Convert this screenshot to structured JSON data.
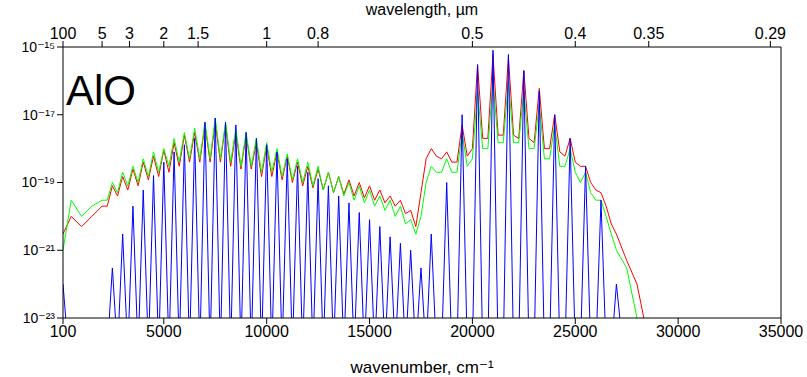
{
  "chart_data": {
    "type": "line",
    "title": "AlO",
    "xlabel": "wavenumber, cm⁻¹",
    "x2label": "wavelength, µm",
    "log": "y",
    "grid": false,
    "xlim": [
      100,
      35000
    ],
    "xticks": [
      100,
      5000,
      10000,
      15000,
      20000,
      25000,
      30000,
      35000
    ],
    "x2lim": [
      100,
      35000
    ],
    "x2ticks": [
      {
        "value": 100,
        "label": "100"
      },
      {
        "value": 2000,
        "label": "5"
      },
      {
        "value": 3333,
        "label": "3"
      },
      {
        "value": 5000,
        "label": "2"
      },
      {
        "value": 6667,
        "label": "1.5"
      },
      {
        "value": 10000,
        "label": "1"
      },
      {
        "value": 12500,
        "label": "0.8"
      },
      {
        "value": 20000,
        "label": "0.5"
      },
      {
        "value": 25000,
        "label": "0.4"
      },
      {
        "value": 28571,
        "label": "0.35"
      },
      {
        "value": 34483,
        "label": "0.29"
      }
    ],
    "ylim": [
      1e-23,
      1e-15
    ],
    "yticks": [
      {
        "value": 1e-23,
        "label": "10⁻²³"
      },
      {
        "value": 1e-21,
        "label": "10⁻²¹"
      },
      {
        "value": 1e-19,
        "label": "10⁻¹⁹"
      },
      {
        "value": 1e-17,
        "label": "10⁻¹⁷"
      },
      {
        "value": 1e-15,
        "label": "10⁻¹⁵"
      }
    ],
    "x": [
      100,
      500,
      1000,
      1500,
      2000,
      2250,
      2500,
      2750,
      3000,
      3250,
      3500,
      3750,
      4000,
      4250,
      4500,
      4750,
      5000,
      5250,
      5500,
      5750,
      6000,
      6250,
      6500,
      6750,
      7000,
      7250,
      7500,
      7750,
      8000,
      8250,
      8500,
      8750,
      9000,
      9250,
      9500,
      9750,
      10000,
      10250,
      10500,
      10750,
      11000,
      11250,
      11500,
      11750,
      12000,
      12250,
      12500,
      12750,
      13000,
      13250,
      13500,
      13750,
      14000,
      14250,
      14500,
      14750,
      15000,
      15250,
      15500,
      15750,
      16000,
      16250,
      16500,
      16750,
      17000,
      17250,
      17500,
      17750,
      18000,
      18250,
      18500,
      18750,
      19000,
      19250,
      19500,
      19750,
      20000,
      20250,
      20500,
      20750,
      21000,
      21250,
      21500,
      21750,
      22000,
      22250,
      22500,
      22750,
      23000,
      23250,
      23500,
      23750,
      24000,
      24250,
      24500,
      24750,
      25000,
      25250,
      25500,
      25750,
      26000,
      26250,
      26500,
      26750,
      27000,
      27500,
      28000,
      29000,
      30000,
      35000
    ],
    "series": [
      {
        "color": "#ff0000",
        "marker": "none",
        "line_style": "solid",
        "values": [
          3e-21,
          1e-20,
          5e-21,
          1e-20,
          2e-20,
          2e-20,
          8e-20,
          4e-20,
          1.5e-19,
          6e-20,
          2.5e-19,
          8e-20,
          4e-19,
          1.2e-19,
          6e-19,
          1.5e-19,
          9e-19,
          2e-19,
          1.5e-18,
          3e-19,
          2.5e-18,
          4e-19,
          3e-18,
          4e-19,
          5e-18,
          4e-19,
          6e-18,
          4e-19,
          5e-18,
          3e-19,
          3e-18,
          2.5e-19,
          2.5e-18,
          2.5e-19,
          1.5e-18,
          1.5e-19,
          1.2e-18,
          1.5e-19,
          8e-19,
          1.2e-19,
          6e-19,
          1e-19,
          4e-19,
          8e-20,
          3e-19,
          7e-20,
          2.5e-19,
          6e-20,
          2e-19,
          5e-20,
          1.5e-19,
          4.5e-20,
          1.2e-19,
          4e-20,
          1e-19,
          3.5e-20,
          8e-20,
          3e-20,
          6e-20,
          2.5e-20,
          4e-20,
          2e-20,
          3e-20,
          1.2e-20,
          1.5e-20,
          5e-21,
          5e-20,
          5e-19,
          1e-18,
          6e-19,
          5e-19,
          8e-19,
          4e-19,
          4e-19,
          5e-18,
          6e-19,
          1e-18,
          3e-16,
          2e-18,
          2e-18,
          6e-16,
          2.5e-18,
          2.5e-18,
          5e-16,
          2.5e-18,
          2e-18,
          2e-16,
          2e-18,
          1.5e-18,
          6e-17,
          1e-18,
          1e-18,
          1e-17,
          8e-19,
          6e-19,
          2e-18,
          4e-19,
          3e-19,
          3e-19,
          1e-19,
          6e-20,
          5e-20,
          2e-20,
          6e-21,
          3e-21,
          5e-22,
          1e-22,
          1e-25,
          1e-25,
          1e-25
        ]
      },
      {
        "color": "#00ff00",
        "marker": "none",
        "line_style": "solid",
        "values": [
          1e-21,
          3e-20,
          1e-20,
          2e-20,
          3e-20,
          3e-20,
          1e-19,
          5e-20,
          2e-19,
          8e-20,
          3e-19,
          1e-19,
          5e-19,
          1.5e-19,
          8e-19,
          2e-19,
          1e-18,
          3e-19,
          2e-18,
          4e-19,
          3e-18,
          5e-19,
          4e-18,
          5e-19,
          6e-18,
          5e-19,
          8e-18,
          5e-19,
          6e-18,
          4e-19,
          4e-18,
          3e-19,
          3e-18,
          3e-19,
          2e-18,
          2e-19,
          1.5e-18,
          2e-19,
          1e-18,
          1.5e-19,
          7e-19,
          1.2e-19,
          5e-19,
          1e-19,
          4e-19,
          8e-20,
          3e-19,
          6e-20,
          2e-19,
          5e-20,
          1.5e-19,
          4e-20,
          1e-19,
          3e-20,
          8e-20,
          2.5e-20,
          6e-20,
          2e-20,
          4e-20,
          1.5e-20,
          3e-20,
          1e-20,
          2e-20,
          6e-21,
          8e-21,
          3e-21,
          1e-20,
          1e-19,
          3e-19,
          2e-19,
          2e-19,
          5e-19,
          2e-19,
          2e-19,
          3e-18,
          3e-19,
          5e-19,
          5e-17,
          1e-18,
          1e-18,
          1e-16,
          1.5e-18,
          1.5e-18,
          1e-16,
          1.5e-18,
          1.5e-18,
          5e-17,
          1e-18,
          1e-18,
          2e-17,
          5e-19,
          5e-19,
          5e-18,
          3e-19,
          3e-19,
          1e-18,
          2e-19,
          1e-19,
          2e-19,
          5e-20,
          3e-20,
          3e-20,
          1e-20,
          3e-21,
          1e-21,
          3e-22,
          1e-23,
          1e-25,
          1e-25,
          1e-25
        ]
      },
      {
        "color": "#0000ff",
        "marker": "none",
        "line_style": "solid",
        "values": [
          1e-22,
          1e-25,
          1e-25,
          1e-25,
          1e-25,
          1e-24,
          3e-22,
          1e-24,
          3e-21,
          1e-24,
          2e-20,
          1e-24,
          6e-20,
          1e-24,
          1.6e-19,
          1e-24,
          4e-19,
          1e-24,
          8e-19,
          1e-24,
          1.3e-18,
          1e-24,
          2e-18,
          1e-24,
          6e-18,
          1e-24,
          8e-18,
          1e-24,
          6e-18,
          1e-24,
          5e-18,
          1e-24,
          3e-18,
          1e-24,
          2e-18,
          1e-24,
          1.3e-18,
          1e-24,
          8e-19,
          1e-24,
          5e-19,
          1e-24,
          3e-19,
          1e-24,
          2e-19,
          1e-24,
          1.3e-19,
          1e-24,
          8e-20,
          1e-24,
          4e-20,
          1e-24,
          2.5e-20,
          1e-24,
          1.3e-20,
          1e-24,
          8e-21,
          1e-24,
          5e-21,
          1e-24,
          2.5e-21,
          1e-24,
          1.6e-21,
          1e-24,
          1e-21,
          1e-24,
          3e-22,
          1e-24,
          3e-21,
          1e-24,
          1e-24,
          1e-19,
          1e-24,
          1e-24,
          1e-17,
          1e-24,
          1e-24,
          3e-16,
          1e-24,
          1e-24,
          8e-16,
          1e-24,
          1e-24,
          6e-16,
          1e-24,
          1e-24,
          2e-16,
          1e-24,
          1e-24,
          5e-17,
          1e-24,
          1e-24,
          1e-17,
          1e-24,
          1e-24,
          2e-18,
          1e-24,
          1e-24,
          3e-19,
          1e-24,
          1e-24,
          3e-20,
          1e-24,
          1e-24,
          1e-22,
          1e-25,
          1e-25,
          1e-25,
          1e-25,
          1e-25
        ]
      }
    ]
  }
}
